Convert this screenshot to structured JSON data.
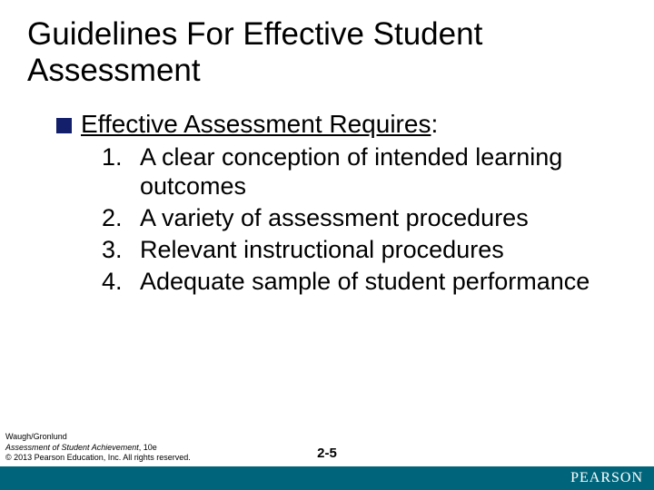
{
  "title": "Guidelines For Effective Student Assessment",
  "subhead_text": "Effective Assessment Requires",
  "subhead_trailing": ":",
  "bullet_color": "#131f6b",
  "items": [
    {
      "n": "1.",
      "t": "A clear conception of intended learning outcomes"
    },
    {
      "n": "2.",
      "t": "A variety of assessment procedures"
    },
    {
      "n": "3.",
      "t": "Relevant instructional procedures"
    },
    {
      "n": "4.",
      "t": "Adequate sample of student performance"
    }
  ],
  "footer": {
    "authors": "Waugh/Gronlund",
    "book": "Assessment of Student Achievement",
    "edition": ", 10e",
    "copyright": "© 2013 Pearson Education, Inc. All rights reserved."
  },
  "slide_number": "2-5",
  "brand": "PEARSON",
  "brand_bar_color": "#00657b",
  "title_fontsize": 35,
  "subhead_fontsize": 28,
  "body_fontsize": 27
}
